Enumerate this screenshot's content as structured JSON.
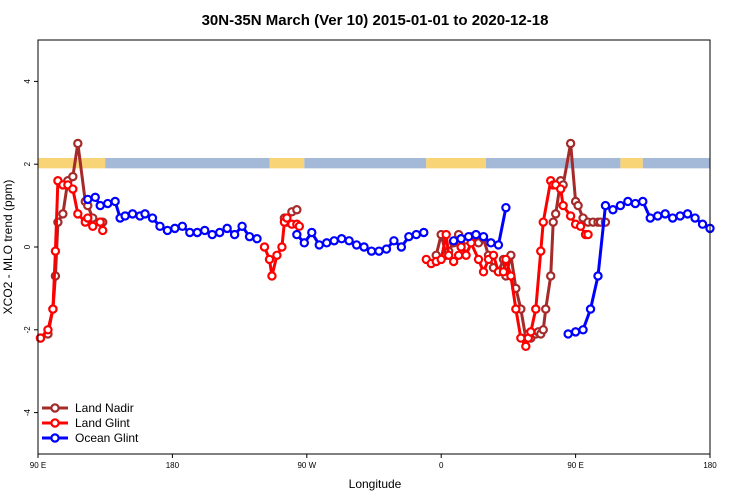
{
  "chart_data": {
    "type": "line",
    "title": "30N-35N March (Ver 10)   2015-01-01 to 2020-12-18",
    "xlabel": "Longitude",
    "ylabel": "XCO2 - MLO trend (ppm)",
    "xlim": [
      -90,
      180
    ],
    "ylim": [
      -5,
      5
    ],
    "x_ticks": [
      {
        "value": -90,
        "label": "90 E"
      },
      {
        "value": -36,
        "label": "180"
      },
      {
        "value": 18,
        "label": "90 W"
      },
      {
        "value": 72,
        "label": "0"
      },
      {
        "value": 126,
        "label": "90 E"
      },
      {
        "value": 180,
        "label": "180"
      }
    ],
    "y_ticks": [
      -4,
      -2,
      0,
      2,
      4
    ],
    "grid": false,
    "legend_position": "bottom-left",
    "band": {
      "y_range": [
        1.9,
        2.15
      ],
      "colors": {
        "land": "#f8d477",
        "ocean": "#a4b8d8"
      },
      "segments": [
        {
          "start": -90,
          "end": -63,
          "kind": "land"
        },
        {
          "start": -63,
          "end": 3,
          "kind": "ocean"
        },
        {
          "start": 3,
          "end": 17,
          "kind": "land"
        },
        {
          "start": 17,
          "end": 66,
          "kind": "ocean"
        },
        {
          "start": 66,
          "end": 90,
          "kind": "land"
        },
        {
          "start": 90,
          "end": 144,
          "kind": "ocean"
        },
        {
          "start": 144,
          "end": 153,
          "kind": "land"
        },
        {
          "start": 153,
          "end": 180,
          "kind": "ocean"
        }
      ]
    },
    "series": [
      {
        "name": "Land Nadir",
        "color": "#a52a2a",
        "x": [
          -89,
          -86,
          -84,
          -83,
          -82,
          -80,
          -78,
          -76,
          -74,
          -71,
          -70,
          -68,
          -65,
          -64,
          9,
          10,
          12,
          14,
          70,
          72,
          74,
          75,
          77,
          79,
          80,
          82,
          84,
          87,
          89,
          91,
          93,
          95,
          97,
          98,
          100,
          102,
          104,
          106,
          107,
          108,
          110,
          111,
          112,
          113,
          114,
          116,
          117,
          118,
          120,
          121,
          124,
          126,
          127,
          129,
          131,
          133,
          135,
          136,
          138
        ],
        "y": [
          -2.2,
          -2.1,
          -1.5,
          -0.7,
          0.6,
          0.8,
          1.6,
          1.7,
          2.5,
          1.1,
          1.0,
          0.7,
          0.6,
          0.6,
          0.7,
          0.6,
          0.85,
          0.9,
          -0.2,
          0.3,
          -0.2,
          -0.1,
          0.1,
          0.3,
          0.2,
          0.0,
          0.25,
          0.1,
          0.2,
          -0.2,
          -0.5,
          -0.6,
          -0.3,
          -0.7,
          -0.2,
          -1.0,
          -1.5,
          -2.2,
          -2.1,
          -2.2,
          -2.1,
          -2.05,
          -2.1,
          -2.0,
          -1.5,
          -0.7,
          0.6,
          0.8,
          1.6,
          1.5,
          2.5,
          1.1,
          1.0,
          0.7,
          0.6,
          0.6,
          0.6,
          0.6,
          0.6
        ]
      },
      {
        "name": "Land Glint",
        "color": "#ff0000",
        "x": [
          -89,
          -86,
          -84,
          -83,
          -82,
          -80,
          -78,
          -76,
          -74,
          -71,
          -70,
          -68,
          -65,
          -64,
          1,
          3,
          4,
          6,
          8,
          9,
          10,
          12,
          14,
          15,
          66,
          68,
          70,
          72,
          74,
          75,
          77,
          79,
          80,
          82,
          84,
          87,
          89,
          91,
          93,
          95,
          97,
          98,
          100,
          102,
          104,
          106,
          107,
          108,
          110,
          112,
          113,
          116,
          117,
          118,
          120,
          121,
          124,
          126,
          128,
          130,
          131
        ],
        "y": [
          -2.2,
          -2.0,
          -1.5,
          -0.1,
          1.6,
          1.5,
          1.5,
          1.4,
          0.8,
          0.6,
          0.7,
          0.5,
          0.6,
          0.4,
          0.0,
          -0.3,
          -0.7,
          -0.2,
          0.0,
          0.6,
          0.7,
          0.55,
          0.55,
          0.5,
          -0.3,
          -0.4,
          -0.35,
          -0.3,
          0.3,
          -0.2,
          -0.35,
          -0.2,
          0.0,
          -0.2,
          0.1,
          -0.3,
          -0.6,
          -0.3,
          -0.2,
          -0.6,
          -0.6,
          -0.3,
          -0.7,
          -1.5,
          -2.2,
          -2.4,
          -2.2,
          -2.05,
          -1.5,
          -0.1,
          0.6,
          1.6,
          1.5,
          1.5,
          1.4,
          1.0,
          0.75,
          0.55,
          0.5,
          0.3,
          0.3
        ]
      },
      {
        "name": "Ocean Glint",
        "color": "#0000ff",
        "x": [
          -70,
          -67,
          -65,
          -62,
          -59,
          -57,
          -55,
          -52,
          -49,
          -47,
          -44,
          -41,
          -38,
          -35,
          -32,
          -29,
          -26,
          -23,
          -20,
          -17,
          -14,
          -11,
          -8,
          -5,
          -2,
          14,
          17,
          20,
          23,
          26,
          29,
          32,
          35,
          38,
          41,
          44,
          47,
          50,
          53,
          56,
          59,
          62,
          65,
          77,
          80,
          83,
          86,
          89,
          92,
          95,
          98,
          123,
          126,
          129,
          132,
          135,
          138,
          141,
          144,
          147,
          150,
          153,
          156,
          159,
          162,
          165,
          168,
          171,
          174,
          177,
          180
        ],
        "y": [
          1.15,
          1.2,
          1.0,
          1.05,
          1.1,
          0.7,
          0.75,
          0.8,
          0.75,
          0.8,
          0.7,
          0.5,
          0.4,
          0.45,
          0.5,
          0.35,
          0.35,
          0.4,
          0.3,
          0.35,
          0.45,
          0.3,
          0.5,
          0.25,
          0.2,
          0.3,
          0.1,
          0.35,
          0.05,
          0.1,
          0.15,
          0.2,
          0.15,
          0.05,
          0.0,
          -0.1,
          -0.1,
          -0.05,
          0.15,
          0.0,
          0.25,
          0.3,
          0.35,
          0.15,
          0.2,
          0.25,
          0.3,
          0.25,
          0.1,
          0.05,
          0.95,
          -2.1,
          -2.05,
          -2.0,
          -1.5,
          -0.7,
          1.0,
          0.9,
          1.0,
          1.1,
          1.05,
          1.1,
          0.7,
          0.75,
          0.8,
          0.7,
          0.75,
          0.8,
          0.7,
          0.55,
          0.45
        ]
      }
    ]
  }
}
